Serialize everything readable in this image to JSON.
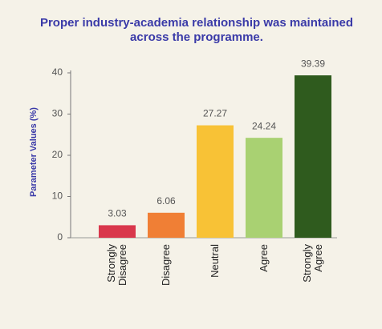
{
  "chart_data": {
    "type": "bar",
    "title": "Proper industry-academia relationship was maintained across the programme.",
    "ylabel": "Parameter Values (%)",
    "categories": [
      "Strongly Disagree",
      "Disagree",
      "Neutral",
      "Agree",
      "Strongly Agree"
    ],
    "values": [
      3.03,
      6.06,
      27.27,
      24.24,
      39.39
    ],
    "colors": [
      "#d9374c",
      "#f07f35",
      "#f8c236",
      "#a9d172",
      "#2f5b1e"
    ],
    "ylim": [
      0,
      40
    ],
    "yticks": [
      0,
      10,
      20,
      30,
      40
    ]
  }
}
